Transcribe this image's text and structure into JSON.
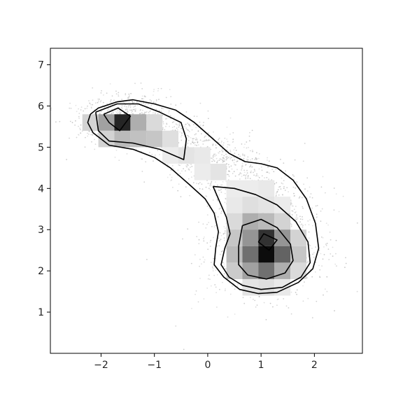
{
  "chart_data": {
    "type": "heatmap",
    "title": "",
    "xlabel": "",
    "ylabel": "",
    "xlim": [
      -2.95,
      2.9
    ],
    "ylim": [
      0.0,
      7.4
    ],
    "x_ticks": [
      -2,
      -1,
      0,
      1,
      2
    ],
    "y_ticks": [
      1,
      2,
      3,
      4,
      5,
      6,
      7
    ],
    "x_tick_labels": [
      "−2",
      "−1",
      "0",
      "1",
      "2"
    ],
    "y_tick_labels": [
      "1",
      "2",
      "3",
      "4",
      "5",
      "6",
      "7"
    ],
    "grid": false,
    "legend": "none",
    "colormap": "greys",
    "bin_width": 0.3,
    "bin_height": 0.4,
    "density_bins": [
      {
        "x": -2.2,
        "y": 5.6,
        "v": 0.15
      },
      {
        "x": -1.9,
        "y": 5.6,
        "v": 0.35
      },
      {
        "x": -1.6,
        "y": 5.6,
        "v": 0.85
      },
      {
        "x": -1.3,
        "y": 5.6,
        "v": 0.3
      },
      {
        "x": -1.0,
        "y": 5.6,
        "v": 0.12
      },
      {
        "x": -1.9,
        "y": 5.2,
        "v": 0.15
      },
      {
        "x": -1.6,
        "y": 5.2,
        "v": 0.25
      },
      {
        "x": -1.3,
        "y": 5.2,
        "v": 0.22
      },
      {
        "x": -1.0,
        "y": 5.2,
        "v": 0.2
      },
      {
        "x": -0.7,
        "y": 5.2,
        "v": 0.1
      },
      {
        "x": -0.7,
        "y": 4.8,
        "v": 0.05
      },
      {
        "x": -0.4,
        "y": 4.8,
        "v": 0.08
      },
      {
        "x": -0.1,
        "y": 4.8,
        "v": 0.06
      },
      {
        "x": -0.1,
        "y": 4.4,
        "v": 0.05
      },
      {
        "x": 0.2,
        "y": 4.4,
        "v": 0.08
      },
      {
        "x": 0.5,
        "y": 4.0,
        "v": 0.05
      },
      {
        "x": 0.8,
        "y": 4.0,
        "v": 0.05
      },
      {
        "x": 1.1,
        "y": 4.0,
        "v": 0.06
      },
      {
        "x": 0.5,
        "y": 3.6,
        "v": 0.06
      },
      {
        "x": 0.8,
        "y": 3.6,
        "v": 0.1
      },
      {
        "x": 1.1,
        "y": 3.6,
        "v": 0.08
      },
      {
        "x": 1.4,
        "y": 3.6,
        "v": 0.05
      },
      {
        "x": 0.5,
        "y": 3.2,
        "v": 0.12
      },
      {
        "x": 0.8,
        "y": 3.2,
        "v": 0.3
      },
      {
        "x": 1.1,
        "y": 3.2,
        "v": 0.25
      },
      {
        "x": 1.4,
        "y": 3.2,
        "v": 0.15
      },
      {
        "x": 0.5,
        "y": 2.8,
        "v": 0.2
      },
      {
        "x": 0.8,
        "y": 2.8,
        "v": 0.4
      },
      {
        "x": 1.1,
        "y": 2.8,
        "v": 0.8
      },
      {
        "x": 1.4,
        "y": 2.8,
        "v": 0.4
      },
      {
        "x": 1.7,
        "y": 2.8,
        "v": 0.15
      },
      {
        "x": 0.5,
        "y": 2.4,
        "v": 0.25
      },
      {
        "x": 0.8,
        "y": 2.4,
        "v": 0.55
      },
      {
        "x": 1.1,
        "y": 2.4,
        "v": 0.95
      },
      {
        "x": 1.4,
        "y": 2.4,
        "v": 0.6
      },
      {
        "x": 1.7,
        "y": 2.4,
        "v": 0.2
      },
      {
        "x": 0.5,
        "y": 2.0,
        "v": 0.18
      },
      {
        "x": 0.8,
        "y": 2.0,
        "v": 0.35
      },
      {
        "x": 1.1,
        "y": 2.0,
        "v": 0.55
      },
      {
        "x": 1.4,
        "y": 2.0,
        "v": 0.3
      },
      {
        "x": 1.7,
        "y": 2.0,
        "v": 0.12
      },
      {
        "x": 0.8,
        "y": 1.6,
        "v": 0.08
      },
      {
        "x": 1.1,
        "y": 1.6,
        "v": 0.1
      },
      {
        "x": 1.4,
        "y": 1.6,
        "v": 0.06
      }
    ],
    "contours": [
      {
        "level": 1,
        "points": [
          [
            -2.2,
            5.8
          ],
          [
            -2.05,
            5.95
          ],
          [
            -1.7,
            6.1
          ],
          [
            -1.4,
            6.15
          ],
          [
            -1.0,
            6.05
          ],
          [
            -0.6,
            5.9
          ],
          [
            -0.25,
            5.6
          ],
          [
            0.1,
            5.2
          ],
          [
            0.4,
            4.85
          ],
          [
            0.7,
            4.65
          ],
          [
            1.0,
            4.6
          ],
          [
            1.3,
            4.5
          ],
          [
            1.6,
            4.2
          ],
          [
            1.85,
            3.75
          ],
          [
            2.02,
            3.15
          ],
          [
            2.08,
            2.55
          ],
          [
            1.97,
            2.05
          ],
          [
            1.7,
            1.72
          ],
          [
            1.3,
            1.48
          ],
          [
            0.95,
            1.45
          ],
          [
            0.6,
            1.55
          ],
          [
            0.3,
            1.85
          ],
          [
            0.12,
            2.15
          ],
          [
            0.15,
            2.55
          ],
          [
            0.2,
            2.95
          ],
          [
            0.12,
            3.4
          ],
          [
            -0.05,
            3.75
          ],
          [
            -0.35,
            4.1
          ],
          [
            -0.7,
            4.5
          ],
          [
            -1.0,
            4.75
          ],
          [
            -1.4,
            4.95
          ],
          [
            -1.85,
            5.05
          ],
          [
            -2.15,
            5.35
          ],
          [
            -2.25,
            5.6
          ],
          [
            -2.2,
            5.8
          ]
        ]
      },
      {
        "level": 2,
        "points": [
          [
            -2.1,
            5.85
          ],
          [
            -1.7,
            6.05
          ],
          [
            -1.3,
            6.05
          ],
          [
            -0.9,
            5.85
          ],
          [
            -0.5,
            5.6
          ],
          [
            -0.4,
            5.2
          ],
          [
            -0.45,
            4.7
          ],
          [
            -0.9,
            4.95
          ],
          [
            -1.4,
            5.1
          ],
          [
            -1.85,
            5.15
          ],
          [
            -2.05,
            5.4
          ],
          [
            -2.1,
            5.85
          ]
        ]
      },
      {
        "level": 3,
        "points": [
          [
            0.1,
            4.05
          ],
          [
            0.5,
            4.0
          ],
          [
            0.9,
            3.85
          ],
          [
            1.3,
            3.6
          ],
          [
            1.65,
            3.2
          ],
          [
            1.88,
            2.7
          ],
          [
            1.92,
            2.2
          ],
          [
            1.75,
            1.85
          ],
          [
            1.4,
            1.6
          ],
          [
            1.0,
            1.55
          ],
          [
            0.65,
            1.65
          ],
          [
            0.4,
            1.85
          ],
          [
            0.25,
            2.15
          ],
          [
            0.32,
            2.55
          ],
          [
            0.42,
            2.9
          ],
          [
            0.35,
            3.3
          ],
          [
            0.1,
            4.05
          ]
        ]
      },
      {
        "level": 4,
        "points": [
          [
            0.65,
            3.1
          ],
          [
            1.0,
            3.25
          ],
          [
            1.3,
            3.05
          ],
          [
            1.55,
            2.65
          ],
          [
            1.6,
            2.25
          ],
          [
            1.45,
            1.95
          ],
          [
            1.1,
            1.8
          ],
          [
            0.75,
            1.9
          ],
          [
            0.58,
            2.15
          ],
          [
            0.58,
            2.6
          ],
          [
            0.65,
            3.1
          ]
        ]
      },
      {
        "level": 5,
        "points": [
          [
            -1.95,
            5.8
          ],
          [
            -1.68,
            5.95
          ],
          [
            -1.45,
            5.75
          ],
          [
            -1.65,
            5.4
          ],
          [
            -1.85,
            5.6
          ],
          [
            -1.95,
            5.8
          ]
        ]
      },
      {
        "level": 6,
        "points": [
          [
            0.95,
            2.7
          ],
          [
            1.05,
            2.9
          ],
          [
            1.3,
            2.75
          ],
          [
            1.15,
            2.5
          ],
          [
            0.95,
            2.7
          ]
        ]
      }
    ],
    "scatter_cloud": {
      "n": 2600,
      "seed": 7,
      "clusters": [
        {
          "mean": [
            1.1,
            2.6
          ],
          "sd": [
            0.55,
            0.65
          ],
          "rot": -0.25,
          "weight": 0.42
        },
        {
          "mean": [
            -1.6,
            5.7
          ],
          "sd": [
            0.45,
            0.3
          ],
          "rot": 0.2,
          "weight": 0.23
        },
        {
          "mean": [
            -0.2,
            4.9
          ],
          "sd": [
            0.75,
            0.35
          ],
          "rot": -0.5,
          "weight": 0.2
        },
        {
          "mean": [
            0.6,
            4.2
          ],
          "sd": [
            0.7,
            0.4
          ],
          "rot": -0.6,
          "weight": 0.15
        }
      ]
    }
  }
}
